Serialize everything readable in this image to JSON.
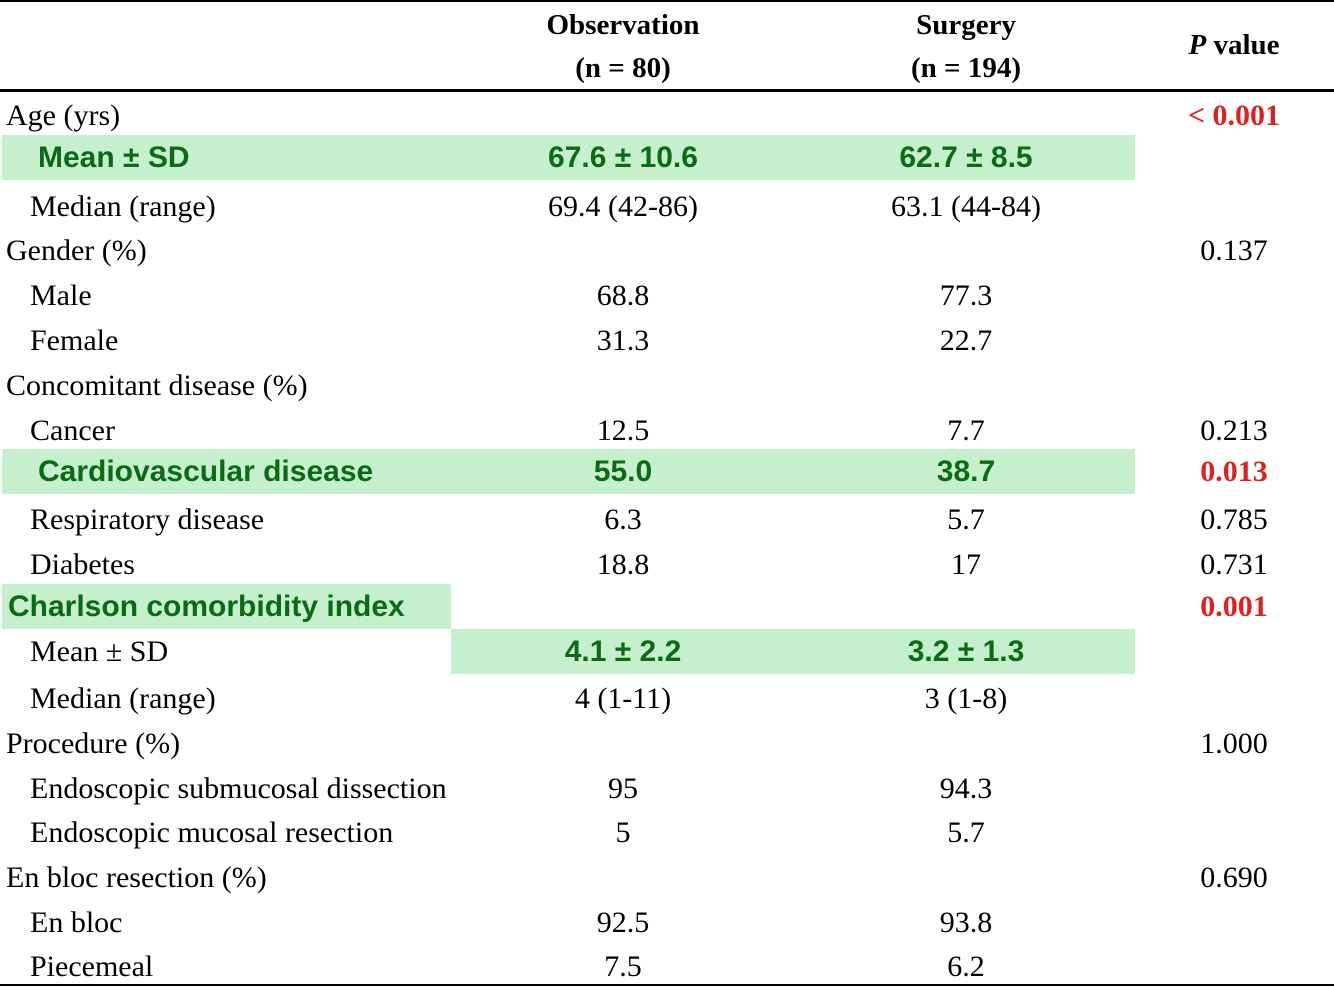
{
  "header": {
    "observation": [
      "Observation",
      "(n = 80)"
    ],
    "surgery": [
      "Surgery",
      "(n = 194)"
    ],
    "p_value": {
      "italic": "P",
      "rest": " value"
    }
  },
  "colors": {
    "highlight": "#c6efce",
    "highlight_text": "#0b6b14",
    "significant": "#e02020"
  },
  "rows": [
    {
      "label": "Age (yrs)",
      "observation": "",
      "surgery": "",
      "p": "< 0.001"
    },
    {
      "label": "Mean ± SD",
      "observation": "67.6 ± 10.6",
      "surgery": "62.7 ± 8.5",
      "p": ""
    },
    {
      "label": "Median (range)",
      "observation": "69.4 (42-86)",
      "surgery": "63.1 (44-84)",
      "p": ""
    },
    {
      "label": "Gender (%)",
      "observation": "",
      "surgery": "",
      "p": "0.137"
    },
    {
      "label": "Male",
      "observation": "68.8",
      "surgery": "77.3",
      "p": ""
    },
    {
      "label": "Female",
      "observation": "31.3",
      "surgery": "22.7",
      "p": ""
    },
    {
      "label": "Concomitant disease (%)",
      "observation": "",
      "surgery": "",
      "p": ""
    },
    {
      "label": "Cancer",
      "observation": "12.5",
      "surgery": "7.7",
      "p": "0.213"
    },
    {
      "label": "Cardiovascular disease",
      "observation": "55.0",
      "surgery": "38.7",
      "p": "0.013"
    },
    {
      "label": "Respiratory disease",
      "observation": "6.3",
      "surgery": "5.7",
      "p": "0.785"
    },
    {
      "label": "Diabetes",
      "observation": "18.8",
      "surgery": "17",
      "p": "0.731"
    },
    {
      "label": "Charlson comorbidity index",
      "observation": "",
      "surgery": "",
      "p": "0.001"
    },
    {
      "label": "Mean ± SD",
      "observation": "4.1 ± 2.2",
      "surgery": "3.2 ± 1.3",
      "p": ""
    },
    {
      "label": "Median (range)",
      "observation": "4 (1-11)",
      "surgery": "3 (1-8)",
      "p": ""
    },
    {
      "label": "Procedure (%)",
      "observation": "",
      "surgery": "",
      "p": "1.000"
    },
    {
      "label": "Endoscopic submucosal dissection",
      "observation": "95",
      "surgery": "94.3",
      "p": ""
    },
    {
      "label": "Endoscopic mucosal resection",
      "observation": "5",
      "surgery": "5.7",
      "p": ""
    },
    {
      "label": "En bloc resection (%)",
      "observation": "",
      "surgery": "",
      "p": "0.690"
    },
    {
      "label": "En bloc",
      "observation": "92.5",
      "surgery": "93.8",
      "p": ""
    },
    {
      "label": "Piecemeal",
      "observation": "7.5",
      "surgery": "6.2",
      "p": ""
    }
  ]
}
